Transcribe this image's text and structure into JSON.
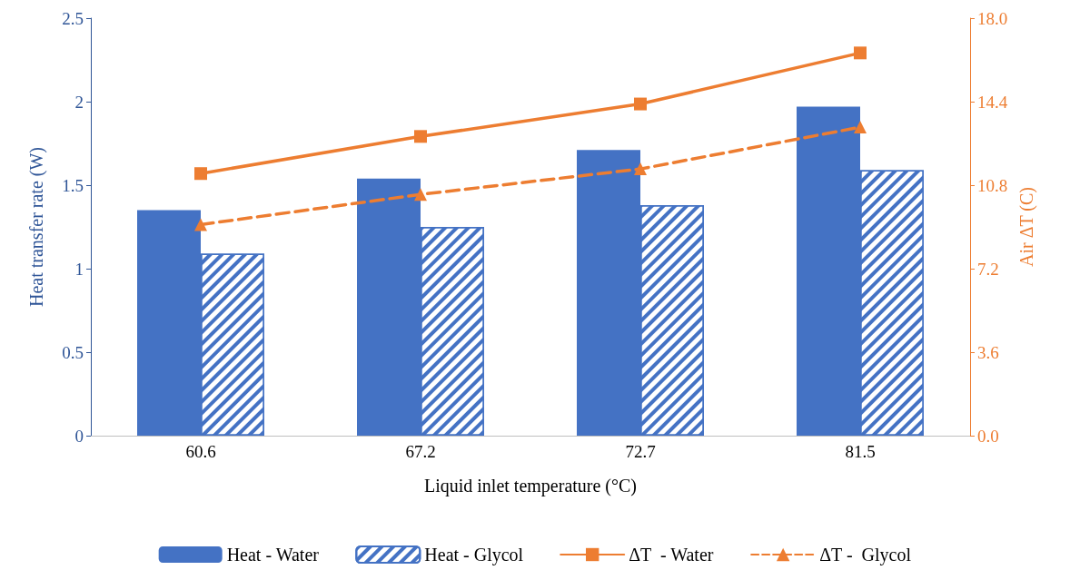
{
  "chart_data": {
    "type": "bar",
    "xlabel": "Liquid inlet temperature (°C)",
    "ylabel": "Heat transfer rate (W)",
    "y2label": "Air ΔT (C)",
    "categories": [
      "60.6",
      "67.2",
      "72.7",
      "81.5"
    ],
    "series": [
      {
        "name": "Heat - Water",
        "color": "#4472c4",
        "values": [
          1.35,
          1.54,
          1.71,
          1.97
        ]
      },
      {
        "name": "Heat - Glycol",
        "color": "#4472c4",
        "values": [
          1.09,
          1.25,
          1.38,
          1.59
        ]
      },
      {
        "name": "ΔT  - Water",
        "type": "line",
        "axis": "y2",
        "color": "#ed7d31",
        "marker": "square",
        "line_style": "solid",
        "values": [
          11.3,
          12.9,
          14.3,
          16.5
        ]
      },
      {
        "name": "ΔT -  Glycol",
        "type": "line",
        "axis": "y2",
        "color": "#ed7d31",
        "marker": "triangle",
        "line_style": "dashed",
        "values": [
          9.1,
          10.4,
          11.5,
          13.3
        ]
      }
    ],
    "ylim": [
      0,
      2.5
    ],
    "yticks": [
      0,
      0.5,
      1,
      1.5,
      2,
      2.5
    ],
    "y2lim": [
      0,
      18
    ],
    "y2ticks": [
      {
        "value": 0,
        "label": "0.0"
      },
      {
        "value": 3.6,
        "label": "3.6"
      },
      {
        "value": 7.2,
        "label": "7.2"
      },
      {
        "value": 10.8,
        "label": "10.8"
      },
      {
        "value": 14.4,
        "label": "14.4"
      },
      {
        "value": 18,
        "label": "18.0"
      }
    ],
    "grid": false,
    "legend": "bottom"
  }
}
